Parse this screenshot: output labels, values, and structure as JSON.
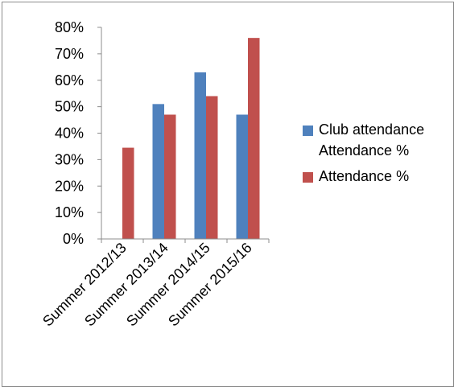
{
  "chart_data": {
    "type": "bar",
    "categories": [
      "Summer 2012/13",
      "Summer 2013/14",
      "Summer 2014/15",
      "Summer 2015/16"
    ],
    "series": [
      {
        "name": "Club attendanceAttendance %",
        "color": "#4f81bd",
        "values": [
          null,
          51,
          63,
          47
        ]
      },
      {
        "name": "Attendance %",
        "color": "#c0504d",
        "values": [
          34.5,
          47,
          54,
          76
        ]
      }
    ],
    "y_ticks": [
      "0%",
      "10%",
      "20%",
      "30%",
      "40%",
      "50%",
      "60%",
      "70%",
      "80%"
    ],
    "ylim": [
      0,
      80
    ],
    "grid": false,
    "legend_position": "right"
  }
}
